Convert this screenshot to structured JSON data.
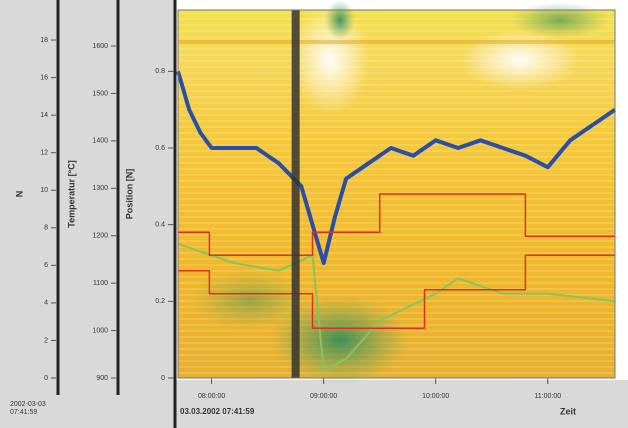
{
  "chart_data": {
    "type": "line",
    "xlabel": "Zeit",
    "xlim": [
      7.7,
      11.6
    ],
    "xticks": [
      {
        "value": 8,
        "label": "08:00:00"
      },
      {
        "value": 9,
        "label": "09:00:00"
      },
      {
        "value": 10,
        "label": "10:00:00"
      },
      {
        "value": 11,
        "label": "11:00:00"
      }
    ],
    "start_label": "03.03.2002 07:41:59",
    "start_label_left": [
      "2002-03-03",
      "07:41:59"
    ],
    "cursor_x": 8.75,
    "axes": [
      {
        "label": "N",
        "ylim": [
          0,
          19.6
        ],
        "yticks": [
          0,
          2,
          4,
          6,
          8,
          10,
          12,
          14,
          16,
          18
        ]
      },
      {
        "label": "Temperatur [°C]",
        "ylim": [
          900,
          1676
        ],
        "yticks": [
          900,
          1000,
          1100,
          1200,
          1300,
          1400,
          1500,
          1600
        ]
      }
    ],
    "ylabel": "Position [N]",
    "ylim": [
      0,
      0.96
    ],
    "yticks": [
      0,
      0.2,
      0.4,
      0.6,
      0.8
    ],
    "series": [
      {
        "color": "#2b4fa6",
        "width": 4,
        "x": [
          7.7,
          7.8,
          7.9,
          8.0,
          8.2,
          8.4,
          8.6,
          8.8,
          8.9,
          9.0,
          9.1,
          9.2,
          9.4,
          9.6,
          9.8,
          10.0,
          10.2,
          10.4,
          10.6,
          10.8,
          11.0,
          11.2,
          11.4,
          11.6
        ],
        "values": [
          0.8,
          0.7,
          0.64,
          0.6,
          0.6,
          0.6,
          0.56,
          0.5,
          0.4,
          0.3,
          0.42,
          0.52,
          0.56,
          0.6,
          0.58,
          0.62,
          0.6,
          0.62,
          0.6,
          0.58,
          0.55,
          0.62,
          0.66,
          0.7
        ]
      },
      {
        "color": "#86c45e",
        "width": 2,
        "x": [
          7.7,
          7.9,
          8.2,
          8.6,
          8.9,
          9.0,
          9.2,
          9.5,
          10.0,
          10.2,
          10.6,
          11.0,
          11.6
        ],
        "values": [
          0.35,
          0.33,
          0.3,
          0.28,
          0.32,
          0.02,
          0.05,
          0.15,
          0.22,
          0.26,
          0.22,
          0.22,
          0.2
        ]
      },
      {
        "color": "#e0301e",
        "width": 1.5,
        "x": [
          7.7,
          7.98,
          7.98,
          8.9,
          8.9,
          9.5,
          9.5,
          10.8,
          10.8,
          11.6
        ],
        "values": [
          0.38,
          0.38,
          0.32,
          0.32,
          0.38,
          0.38,
          0.48,
          0.48,
          0.37,
          0.37
        ]
      },
      {
        "color": "#e0301e",
        "width": 1.5,
        "x": [
          7.7,
          7.98,
          7.98,
          8.9,
          8.9,
          9.9,
          9.9,
          10.8,
          10.8,
          11.6
        ],
        "values": [
          0.28,
          0.28,
          0.22,
          0.22,
          0.13,
          0.13,
          0.23,
          0.23,
          0.32,
          0.32
        ]
      }
    ]
  }
}
